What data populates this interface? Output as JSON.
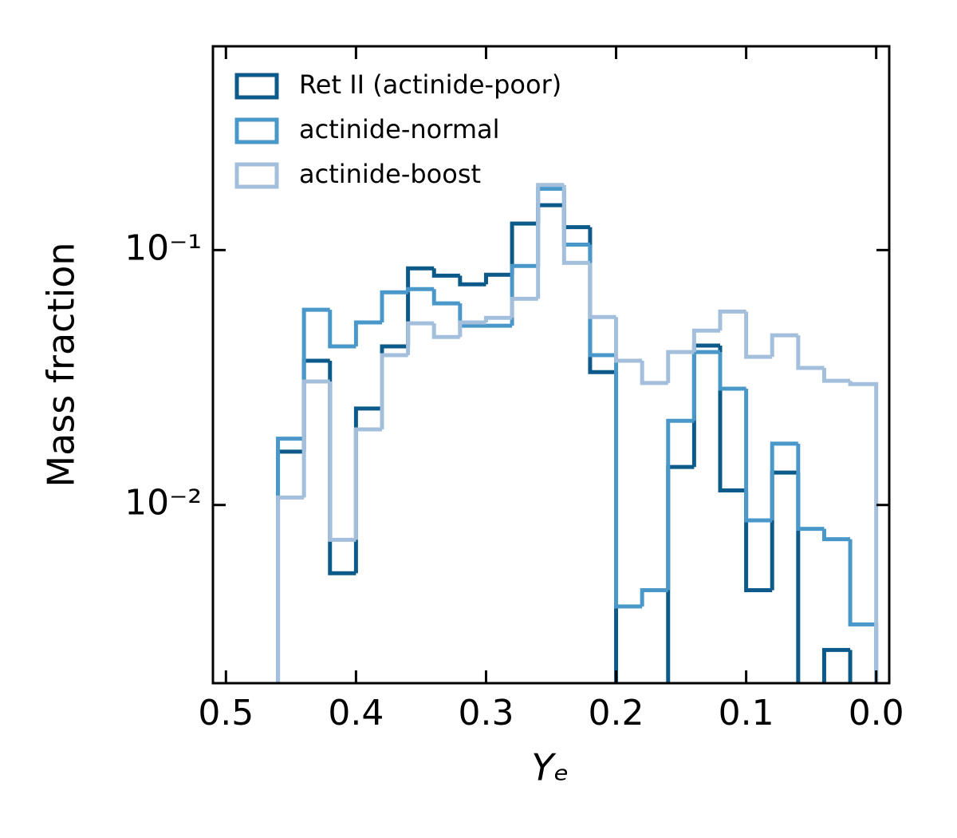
{
  "chart_data": {
    "type": "histogram",
    "xlabel": "Yₑ",
    "ylabel": "Mass fraction",
    "bins": [
      0.46,
      0.44,
      0.42,
      0.4,
      0.38,
      0.36,
      0.34,
      0.32,
      0.3,
      0.28,
      0.26,
      0.24,
      0.22,
      0.2,
      0.18,
      0.16,
      0.14,
      0.12,
      0.1,
      0.08,
      0.06,
      0.04,
      0.02,
      0.0
    ],
    "series": [
      {
        "name": "Ret II (actinide-poor)",
        "color": "#0b5a8a",
        "values": [
          0.0162,
          0.0368,
          0.0054,
          0.0239,
          0.0419,
          0.0848,
          0.0794,
          0.0734,
          0.08,
          0.127,
          0.15,
          0.123,
          0.0332,
          0,
          0,
          0.0141,
          0.0422,
          0.0114,
          0.00463,
          0.0134,
          0,
          0.0027,
          0
        ]
      },
      {
        "name": "actinide-normal",
        "color": "#4a98c9",
        "values": [
          0.0182,
          0.0583,
          0.0419,
          0.052,
          0.0683,
          0.0703,
          0.0618,
          0.0505,
          0.0505,
          0.0866,
          0.174,
          0.105,
          0.0387,
          0.004,
          0.00463,
          0.0214,
          0.0398,
          0.0286,
          0.0087,
          0.0174,
          0.00806,
          0.00734,
          0.0034
        ]
      },
      {
        "name": "actinide-boost",
        "color": "#a3bfdc",
        "values": [
          0.0107,
          0.0305,
          0.0073,
          0.0198,
          0.0387,
          0.0516,
          0.0456,
          0.052,
          0.0542,
          0.0644,
          0.18,
          0.0891,
          0.0546,
          0.0368,
          0.0301,
          0.0398,
          0.0483,
          0.0574,
          0.0381,
          0.0463,
          0.0345,
          0.0307,
          0.0298
        ]
      }
    ],
    "xlim": [
      0.51,
      -0.01
    ],
    "xticks": [
      0.5,
      0.4,
      0.3,
      0.2,
      0.1,
      {
        "value": 0,
        "label": "0.0"
      }
    ],
    "ylim": [
      0.002,
      0.63
    ],
    "yscale": "log",
    "yticks": [
      {
        "value": 0.01,
        "label": "10⁻²"
      },
      {
        "value": 0.1,
        "label": "10⁻¹"
      }
    ],
    "legend": "upper left"
  }
}
